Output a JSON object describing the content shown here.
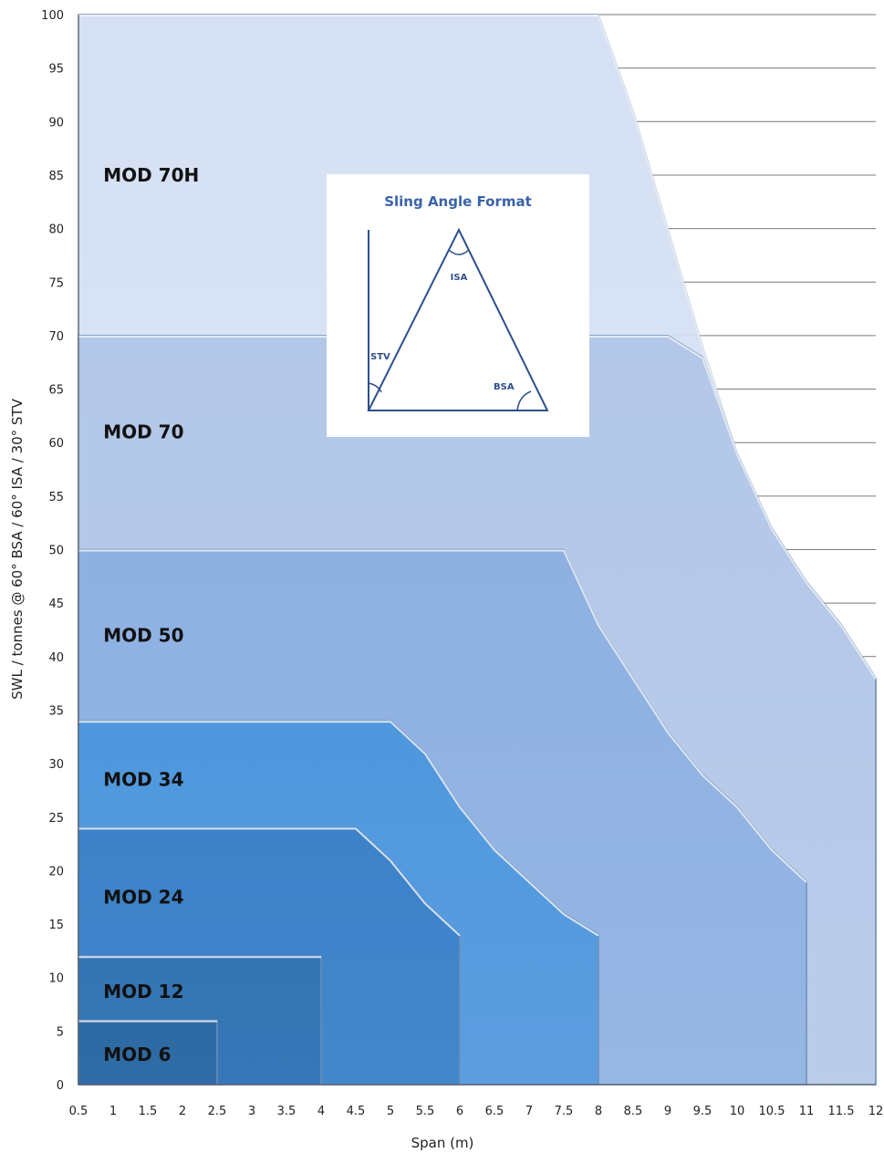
{
  "chart_data": {
    "type": "area",
    "xlabel": "Span (m)",
    "ylabel": "SWL / tonnes @ 60° BSA / 60° ISA / 30° STV",
    "xlim": [
      0.5,
      12
    ],
    "ylim": [
      0,
      100
    ],
    "x_ticks": [
      "0.5",
      "1",
      "1.5",
      "2",
      "2.5",
      "3",
      "3.5",
      "4",
      "4.5",
      "5",
      "5.5",
      "6",
      "6.5",
      "7",
      "7.5",
      "8",
      "8.5",
      "9",
      "9.5",
      "10",
      "10.5",
      "11",
      "11.5",
      "12"
    ],
    "y_ticks": [
      "0",
      "5",
      "10",
      "15",
      "20",
      "25",
      "30",
      "35",
      "40",
      "45",
      "50",
      "55",
      "60",
      "65",
      "70",
      "75",
      "80",
      "85",
      "90",
      "95",
      "100"
    ],
    "grid": "horizontal, right of curves",
    "series": [
      {
        "name": "MOD 70H",
        "color": "#d5e0f4",
        "points": [
          [
            0.5,
            100
          ],
          [
            8,
            100
          ],
          [
            8.5,
            91
          ],
          [
            9,
            80
          ],
          [
            9.5,
            69
          ],
          [
            10,
            59
          ],
          [
            10.5,
            52
          ],
          [
            11,
            47
          ],
          [
            11.5,
            43
          ],
          [
            12,
            38
          ],
          [
            12,
            0
          ],
          [
            0.5,
            0
          ]
        ]
      },
      {
        "name": "MOD 70",
        "color": "#b3c7e8",
        "points": [
          [
            0.5,
            70
          ],
          [
            9,
            70
          ],
          [
            9.5,
            68
          ],
          [
            10,
            59
          ],
          [
            10.5,
            52
          ],
          [
            11,
            47
          ],
          [
            11.5,
            43
          ],
          [
            12,
            38
          ],
          [
            12,
            0
          ],
          [
            0.5,
            0
          ]
        ]
      },
      {
        "name": "MOD 50",
        "color": "#8eb1e2",
        "points": [
          [
            0.5,
            50
          ],
          [
            7.5,
            50
          ],
          [
            8,
            43
          ],
          [
            8.5,
            38
          ],
          [
            9,
            33
          ],
          [
            9.5,
            29
          ],
          [
            10,
            26
          ],
          [
            10.5,
            22
          ],
          [
            11,
            19
          ],
          [
            11,
            0
          ],
          [
            0.5,
            0
          ]
        ]
      },
      {
        "name": "MOD 34",
        "color": "#4f98de",
        "points": [
          [
            0.5,
            34
          ],
          [
            5,
            34
          ],
          [
            5.5,
            31
          ],
          [
            6,
            26
          ],
          [
            6.5,
            22
          ],
          [
            7,
            19
          ],
          [
            7.5,
            16
          ],
          [
            8,
            14
          ],
          [
            8,
            0
          ],
          [
            0.5,
            0
          ]
        ]
      },
      {
        "name": "MOD 24",
        "color": "#3d82c8",
        "points": [
          [
            0.5,
            24
          ],
          [
            4.5,
            24
          ],
          [
            5,
            21
          ],
          [
            5.5,
            17
          ],
          [
            6,
            14
          ],
          [
            6,
            0
          ],
          [
            0.5,
            0
          ]
        ]
      },
      {
        "name": "MOD 12",
        "color": "#3474b3",
        "points": [
          [
            0.5,
            12
          ],
          [
            4,
            12
          ],
          [
            4,
            0
          ],
          [
            0.5,
            0
          ]
        ]
      },
      {
        "name": "MOD 6",
        "color": "#2d6aa3",
        "points": [
          [
            0.5,
            6
          ],
          [
            2.5,
            6
          ],
          [
            2.5,
            0
          ],
          [
            0.5,
            0
          ]
        ]
      }
    ],
    "series_labels": [
      {
        "text": "MOD 70H",
        "x": 0.7,
        "y": 85
      },
      {
        "text": "MOD 70",
        "x": 0.7,
        "y": 61
      },
      {
        "text": "MOD 50",
        "x": 0.7,
        "y": 42
      },
      {
        "text": "MOD 34",
        "x": 0.7,
        "y": 28.5
      },
      {
        "text": "MOD 24",
        "x": 0.7,
        "y": 17.5
      },
      {
        "text": "MOD 12",
        "x": 0.7,
        "y": 8.7
      },
      {
        "text": "MOD 6",
        "x": 0.7,
        "y": 2.8
      }
    ]
  },
  "inset": {
    "title": "Sling Angle Format",
    "labels": {
      "isa": "ISA",
      "stv": "STV",
      "bsa": "BSA"
    }
  }
}
